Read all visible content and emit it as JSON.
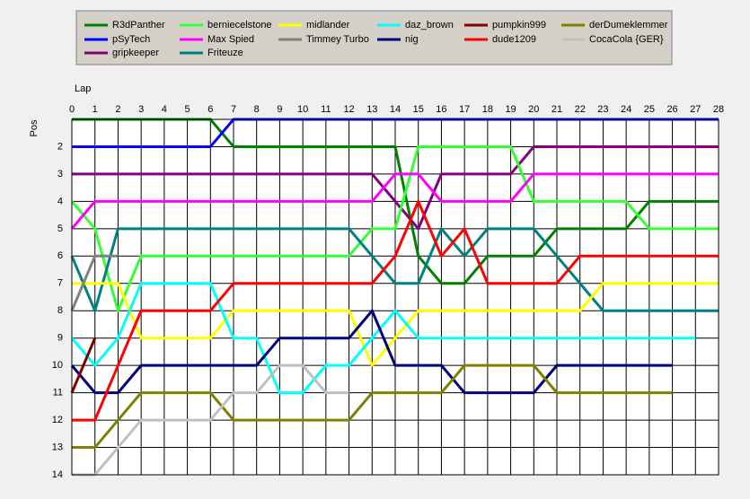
{
  "chart_data": {
    "type": "line",
    "xlabel": "Lap",
    "ylabel": "Pos",
    "x": [
      0,
      1,
      2,
      3,
      4,
      5,
      6,
      7,
      8,
      9,
      10,
      11,
      12,
      13,
      14,
      15,
      16,
      17,
      18,
      19,
      20,
      21,
      22,
      23,
      24,
      25,
      26,
      27,
      28
    ],
    "xlim": [
      0,
      28
    ],
    "xticks": [
      0,
      1,
      2,
      3,
      4,
      5,
      6,
      7,
      8,
      9,
      10,
      11,
      12,
      13,
      14,
      15,
      16,
      17,
      18,
      19,
      20,
      21,
      22,
      23,
      24,
      25,
      26,
      27,
      28
    ],
    "ylim": [
      1,
      14
    ],
    "yticks": [
      2,
      3,
      4,
      5,
      6,
      7,
      8,
      9,
      10,
      11,
      12,
      13,
      14
    ],
    "y_inverted": true,
    "grid": true,
    "series": [
      {
        "name": "R3dPanther",
        "color": "#008000",
        "values": [
          1,
          1,
          1,
          1,
          1,
          1,
          1,
          2,
          2,
          2,
          2,
          2,
          2,
          2,
          2,
          6,
          7,
          7,
          6,
          6,
          6,
          5,
          5,
          5,
          5,
          4,
          4,
          4,
          4
        ]
      },
      {
        "name": "pSyTech",
        "color": "#0000ff",
        "values": [
          2,
          2,
          2,
          2,
          2,
          2,
          2,
          1,
          1,
          1,
          1,
          1,
          1,
          1,
          1,
          1,
          1,
          1,
          1,
          1,
          1,
          1,
          1,
          1,
          1,
          1,
          1,
          1,
          1
        ]
      },
      {
        "name": "gripkeeper",
        "color": "#800080",
        "values": [
          3,
          3,
          3,
          3,
          3,
          3,
          3,
          3,
          3,
          3,
          3,
          3,
          3,
          3,
          4,
          5,
          3,
          3,
          3,
          3,
          2,
          2,
          2,
          2,
          2,
          2,
          2,
          2,
          2
        ]
      },
      {
        "name": "berniecelstone",
        "color": "#33ff33",
        "values": [
          4,
          5,
          8,
          6,
          6,
          6,
          6,
          6,
          6,
          6,
          6,
          6,
          6,
          5,
          5,
          2,
          2,
          2,
          2,
          2,
          4,
          4,
          4,
          4,
          4,
          5,
          5,
          5,
          5
        ]
      },
      {
        "name": "Max Spied",
        "color": "#ff00ff",
        "values": [
          5,
          4,
          4,
          4,
          4,
          4,
          4,
          4,
          4,
          4,
          4,
          4,
          4,
          4,
          3,
          3,
          4,
          4,
          4,
          4,
          3,
          3,
          3,
          3,
          3,
          3,
          3,
          3,
          3
        ]
      },
      {
        "name": "Friteuze",
        "color": "#008080",
        "values": [
          6,
          8,
          5,
          5,
          5,
          5,
          5,
          5,
          5,
          5,
          5,
          5,
          5,
          6,
          7,
          7,
          5,
          6,
          5,
          5,
          5,
          6,
          7,
          8,
          8,
          8,
          8,
          8,
          8
        ]
      },
      {
        "name": "midlander",
        "color": "#ffff00",
        "values": [
          7,
          7,
          7,
          9,
          9,
          9,
          9,
          8,
          8,
          8,
          8,
          8,
          8,
          10,
          9,
          8,
          8,
          8,
          8,
          8,
          8,
          8,
          8,
          7,
          7,
          7,
          7,
          7,
          7
        ]
      },
      {
        "name": "Timmey Turbo",
        "color": "#808080",
        "values": [
          8,
          6,
          6,
          null,
          null,
          null,
          null,
          null,
          null,
          null,
          null,
          null,
          null,
          null,
          null,
          null,
          null,
          null,
          null,
          null,
          null,
          null,
          null,
          null,
          null,
          null,
          null,
          null,
          null
        ]
      },
      {
        "name": "daz_brown",
        "color": "#00ffff",
        "values": [
          9,
          10,
          9,
          7,
          7,
          7,
          7,
          9,
          9,
          11,
          11,
          10,
          10,
          9,
          8,
          9,
          9,
          9,
          9,
          9,
          9,
          9,
          9,
          9,
          9,
          9,
          9,
          9,
          null
        ]
      },
      {
        "name": "nig",
        "color": "#000080",
        "values": [
          10,
          11,
          11,
          10,
          10,
          10,
          10,
          10,
          10,
          9,
          9,
          9,
          9,
          8,
          10,
          10,
          10,
          11,
          11,
          11,
          11,
          10,
          10,
          10,
          10,
          10,
          10,
          null,
          null
        ]
      },
      {
        "name": "pumpkin999",
        "color": "#800000",
        "values": [
          11,
          9,
          null,
          null,
          null,
          null,
          null,
          null,
          null,
          null,
          null,
          null,
          null,
          null,
          null,
          null,
          null,
          null,
          null,
          null,
          null,
          null,
          null,
          null,
          null,
          null,
          null,
          null,
          null
        ]
      },
      {
        "name": "dude1209",
        "color": "#ff0000",
        "values": [
          12,
          12,
          10,
          8,
          8,
          8,
          8,
          7,
          7,
          7,
          7,
          7,
          7,
          7,
          6,
          4,
          6,
          5,
          7,
          7,
          7,
          7,
          6,
          6,
          6,
          6,
          6,
          6,
          6
        ]
      },
      {
        "name": "derDumeklemmer",
        "color": "#808000",
        "values": [
          13,
          13,
          12,
          11,
          11,
          11,
          11,
          12,
          12,
          12,
          12,
          12,
          12,
          11,
          11,
          11,
          11,
          10,
          10,
          10,
          10,
          11,
          11,
          11,
          11,
          11,
          11,
          null,
          null
        ]
      },
      {
        "name": "CocaCola {GER}",
        "color": "#c0c0c0",
        "values": [
          14,
          14,
          13,
          12,
          12,
          12,
          12,
          11,
          11,
          10,
          10,
          11,
          11,
          null,
          null,
          null,
          null,
          null,
          null,
          null,
          null,
          null,
          null,
          null,
          null,
          null,
          null,
          null,
          null
        ]
      }
    ]
  }
}
